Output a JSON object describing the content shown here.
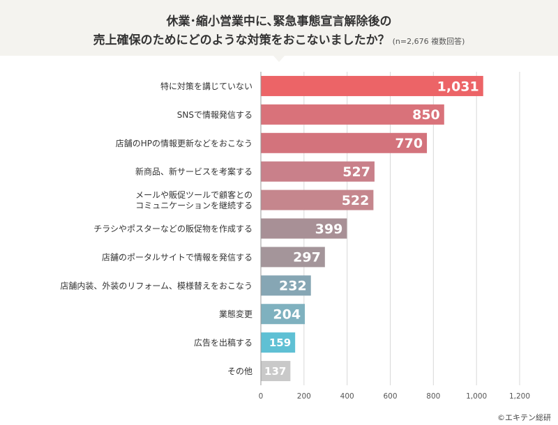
{
  "title": {
    "line1": "休業･縮小営業中に､緊急事態宣言解除後の",
    "line2": "売上確保のためにどのような対策をおこないましたか？",
    "note": "(n=2,676 複数回答)"
  },
  "credit": "©エキテン総研",
  "chart_data": {
    "type": "bar",
    "orientation": "horizontal",
    "categories": [
      [
        "特に対策を講じていない"
      ],
      [
        "SNSで情報発信する"
      ],
      [
        "店舗のHPの情報更新などをおこなう"
      ],
      [
        "新商品、新サービスを考案する"
      ],
      [
        "メールや販促ツールで顧客との",
        "コミュニケーションを継続する"
      ],
      [
        "チラシやポスターなどの販促物を作成する"
      ],
      [
        "店舗のポータルサイトで情報を発信する"
      ],
      [
        "店舗内装、外装のリフォーム、模様替えをおこなう"
      ],
      [
        "業態変更"
      ],
      [
        "広告を出稿する"
      ],
      [
        "その他"
      ]
    ],
    "values": [
      1031,
      850,
      770,
      527,
      522,
      399,
      297,
      232,
      204,
      159,
      137
    ],
    "value_labels": [
      "1,031",
      "850",
      "770",
      "527",
      "522",
      "399",
      "297",
      "232",
      "204",
      "159",
      "137"
    ],
    "colors": [
      "#ec6467",
      "#d9727a",
      "#d3737c",
      "#c9808a",
      "#c5868d",
      "#a89096",
      "#a4959a",
      "#86a6b4",
      "#7fb1bf",
      "#5fc0d4",
      "#c9c9c9"
    ],
    "x_ticks": [
      0,
      200,
      400,
      600,
      800,
      1000,
      1200
    ],
    "x_tick_labels": [
      "0",
      "200",
      "400",
      "600",
      "800",
      "1,000",
      "1,200"
    ],
    "xlim": [
      0,
      1200
    ],
    "grid": true
  }
}
